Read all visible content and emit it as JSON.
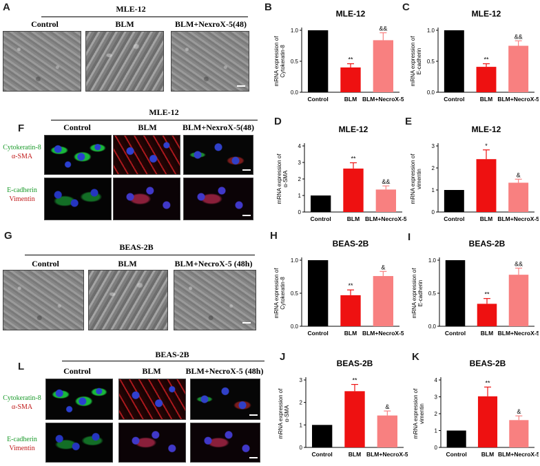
{
  "panels": {
    "A": {
      "letter": "A",
      "title": "MLE-12",
      "cols": [
        "Control",
        "BLM",
        "BLM+NexroX-5(48)"
      ]
    },
    "F": {
      "letter": "F",
      "title": "MLE-12",
      "cols": [
        "Control",
        "BLM",
        "BLM+NexroX-5(48)"
      ],
      "rows": [
        {
          "line1": "Cytokeratin-8",
          "line2": "α-SMA"
        },
        {
          "line1": "E-cadherin",
          "line2": "Vimentin"
        }
      ]
    },
    "G": {
      "letter": "G",
      "title": "BEAS-2B",
      "cols": [
        "Control",
        "BLM",
        "BLM+NecroX-5 (48h)"
      ]
    },
    "L": {
      "letter": "L",
      "title": "BEAS-2B",
      "cols": [
        "Control",
        "BLM",
        "BLM+NecroX-5 (48h)"
      ],
      "rows": [
        {
          "line1": "Cytokeratin-8",
          "line2": "α-SMA"
        },
        {
          "line1": "E-cadherin",
          "line2": "Vimentin"
        }
      ]
    }
  },
  "colors": {
    "control": "#000000",
    "blm": "#ee1111",
    "necrox": "#f88080"
  },
  "chart_data": [
    {
      "id": "B",
      "type": "bar",
      "title": "MLE-12",
      "ylabel_lines": [
        "mRNA expression of",
        "Cytokeratin-8"
      ],
      "categories": [
        "Control",
        "BLM",
        "BLM+NecroX-5"
      ],
      "values": [
        1.0,
        0.4,
        0.84
      ],
      "errors": [
        0,
        0.06,
        0.12
      ],
      "annotations": [
        "",
        "**",
        "&&"
      ],
      "ylim": [
        0,
        1.0
      ],
      "yticks": [
        "0.0",
        "0.5",
        "1.0"
      ],
      "ytick_values": [
        0,
        0.5,
        1.0
      ]
    },
    {
      "id": "C",
      "type": "bar",
      "title": "MLE-12",
      "ylabel_lines": [
        "mRNA expression of",
        "E-cadherin"
      ],
      "categories": [
        "Control",
        "BLM",
        "BLM+NecroX-5"
      ],
      "values": [
        1.0,
        0.41,
        0.75
      ],
      "errors": [
        0,
        0.05,
        0.08
      ],
      "annotations": [
        "",
        "**",
        "&&"
      ],
      "ylim": [
        0,
        1.0
      ],
      "yticks": [
        "0.0",
        "0.5",
        "1.0"
      ],
      "ytick_values": [
        0,
        0.5,
        1.0
      ]
    },
    {
      "id": "D",
      "type": "bar",
      "title": "MLE-12",
      "ylabel_lines": [
        "mRNA expression of",
        "α-SMA"
      ],
      "categories": [
        "Control",
        "BLM",
        "BLM+NecroX-5"
      ],
      "values": [
        1.0,
        2.63,
        1.36
      ],
      "errors": [
        0,
        0.35,
        0.22
      ],
      "annotations": [
        "",
        "**",
        "&&"
      ],
      "ylim": [
        0,
        4
      ],
      "yticks": [
        "0",
        "1",
        "2",
        "3",
        "4"
      ],
      "ytick_values": [
        0,
        1,
        2,
        3,
        4
      ]
    },
    {
      "id": "E",
      "type": "bar",
      "title": "MLE-12",
      "ylabel_lines": [
        "mRNA expression of",
        "vimentin"
      ],
      "categories": [
        "Control",
        "BLM",
        "BLM+NecroX-5"
      ],
      "values": [
        1.0,
        2.4,
        1.33
      ],
      "errors": [
        0,
        0.42,
        0.16
      ],
      "annotations": [
        "",
        "*",
        "&"
      ],
      "ylim": [
        0,
        3
      ],
      "yticks": [
        "0",
        "1",
        "2",
        "3"
      ],
      "ytick_values": [
        0,
        1,
        2,
        3
      ]
    },
    {
      "id": "H",
      "type": "bar",
      "title": "BEAS-2B",
      "ylabel_lines": [
        "mRNA expression of",
        "Cytokeratin-8"
      ],
      "categories": [
        "Control",
        "BLM",
        "BLM+NecroX-5"
      ],
      "values": [
        1.0,
        0.47,
        0.76
      ],
      "errors": [
        0,
        0.08,
        0.07
      ],
      "annotations": [
        "",
        "**",
        "&"
      ],
      "ylim": [
        0,
        1.0
      ],
      "yticks": [
        "0.0",
        "0.5",
        "1.0"
      ],
      "ytick_values": [
        0,
        0.5,
        1.0
      ]
    },
    {
      "id": "I",
      "type": "bar",
      "title": "BEAS-2B",
      "ylabel_lines": [
        "mRNA expression of",
        "E-cadherin"
      ],
      "categories": [
        "Control",
        "BLM",
        "BLM+NecroX-5"
      ],
      "values": [
        1.0,
        0.34,
        0.78
      ],
      "errors": [
        0,
        0.08,
        0.1
      ],
      "annotations": [
        "",
        "**",
        "&&"
      ],
      "ylim": [
        0,
        1.0
      ],
      "yticks": [
        "0.0",
        "0.5",
        "1.0"
      ],
      "ytick_values": [
        0,
        0.5,
        1.0
      ]
    },
    {
      "id": "J",
      "type": "bar",
      "title": "BEAS-2B",
      "ylabel_lines": [
        "mRNA expression of",
        "α-SMA"
      ],
      "categories": [
        "Control",
        "BLM",
        "BLM+NecroX-5"
      ],
      "values": [
        1.0,
        2.5,
        1.42
      ],
      "errors": [
        0,
        0.3,
        0.2
      ],
      "annotations": [
        "",
        "**",
        "&"
      ],
      "ylim": [
        0,
        3
      ],
      "yticks": [
        "0",
        "1",
        "2",
        "3"
      ],
      "ytick_values": [
        0,
        1,
        2,
        3
      ]
    },
    {
      "id": "K",
      "type": "bar",
      "title": "BEAS-2B",
      "ylabel_lines": [
        "mRNA expression of",
        "vimentin"
      ],
      "categories": [
        "Control",
        "BLM",
        "BLM+NecroX-5"
      ],
      "values": [
        1.0,
        3.03,
        1.62
      ],
      "errors": [
        0,
        0.55,
        0.25
      ],
      "annotations": [
        "",
        "**",
        "&"
      ],
      "ylim": [
        0,
        4
      ],
      "yticks": [
        "0",
        "1",
        "2",
        "3",
        "4"
      ],
      "ytick_values": [
        0,
        1,
        2,
        3,
        4
      ]
    }
  ]
}
